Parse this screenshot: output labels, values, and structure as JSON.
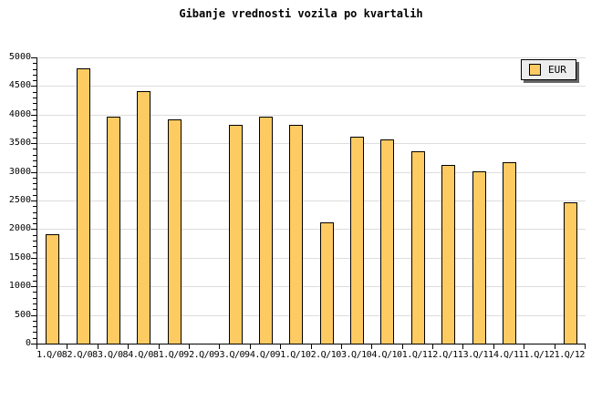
{
  "chart_data": {
    "type": "bar",
    "title": "Gibanje vrednosti vozila po kvartalih",
    "categories": [
      "1.Q/08",
      "2.Q/08",
      "3.Q/08",
      "4.Q/08",
      "1.Q/09",
      "2.Q/09",
      "3.Q/09",
      "4.Q/09",
      "1.Q/10",
      "2.Q/10",
      "3.Q/10",
      "4.Q/10",
      "1.Q/11",
      "2.Q/11",
      "3.Q/11",
      "4.Q/11",
      "1.Q/12",
      "1.Q/12"
    ],
    "series": [
      {
        "name": "EUR",
        "values": [
          1900,
          4800,
          3950,
          4400,
          3900,
          null,
          3800,
          3950,
          3800,
          2100,
          3600,
          3550,
          3350,
          3100,
          3000,
          3150,
          null,
          2450
        ]
      }
    ],
    "xlabel": "",
    "ylabel": "",
    "ylim": [
      0,
      5000
    ],
    "y_tick_step": 500,
    "y_minor_tick_step": 100,
    "grid": "horizontal",
    "legend_position": "top-right",
    "colors": {
      "bar_fill": "#fecb63",
      "bar_border": "#000000",
      "grid": "#dddddd",
      "axis": "#000000",
      "legend_bg": "#ededed",
      "legend_shadow": "#666666",
      "background": "#ffffff"
    }
  }
}
